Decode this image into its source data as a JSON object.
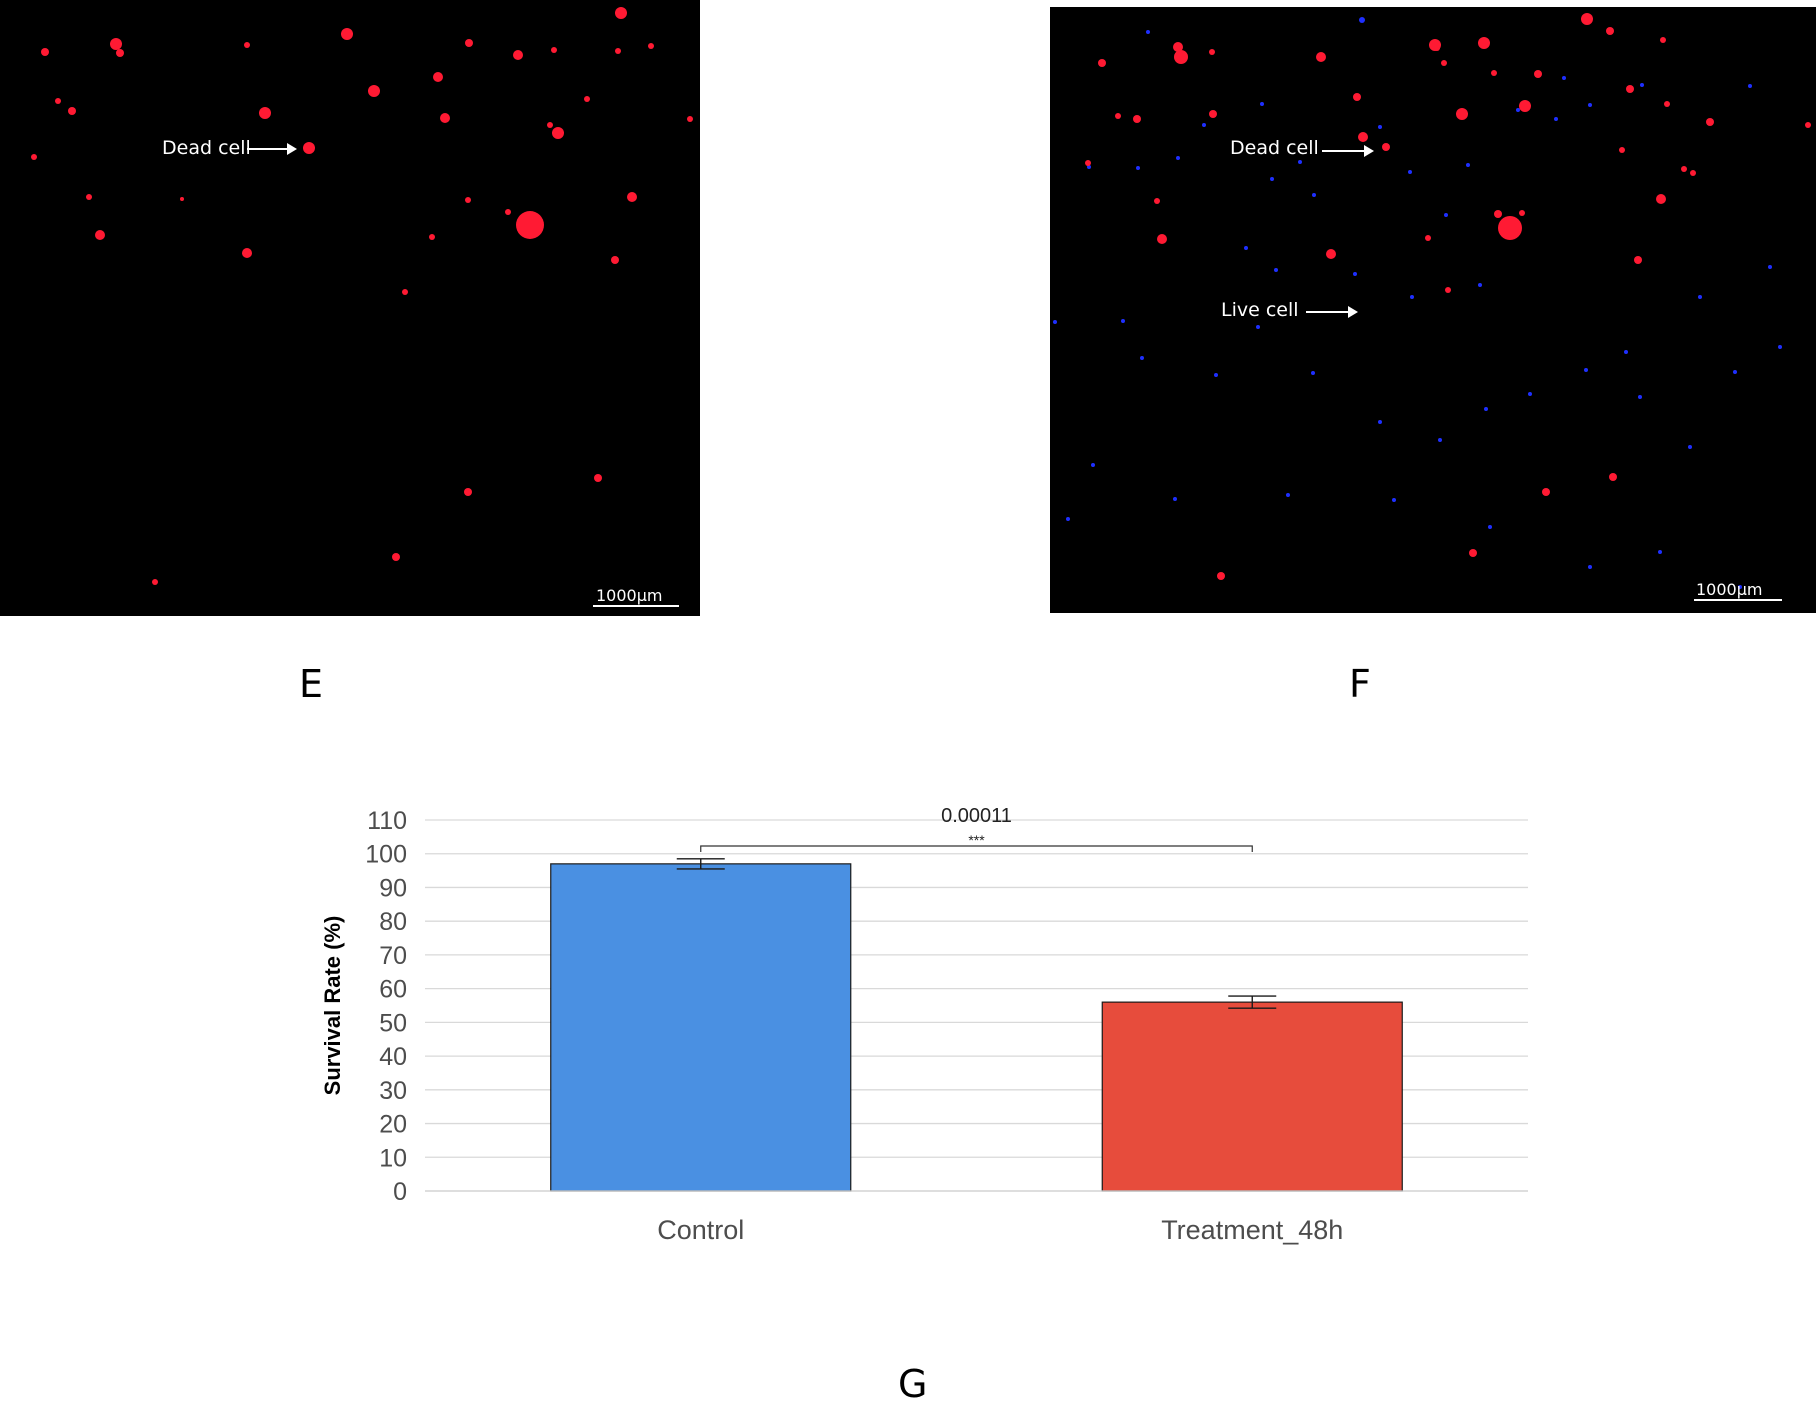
{
  "panels": {
    "e": {
      "letter": "E",
      "annotations": [
        {
          "text": "Dead cell"
        }
      ],
      "scale_bar": "1000µm"
    },
    "f": {
      "letter": "F",
      "annotations": [
        {
          "text": "Dead cell"
        },
        {
          "text": "Live cell"
        }
      ],
      "scale_bar": "1000µm"
    },
    "g": {
      "letter": "G"
    }
  },
  "colors": {
    "dead_cell": "#ff1a33",
    "live_cell": "#1e2fff",
    "control_bar": "#4a90e2",
    "treatment_bar": "#e74c3c"
  },
  "chart_data": {
    "type": "bar",
    "categories": [
      "Control",
      "Treatment_48h"
    ],
    "values": [
      97,
      56
    ],
    "error": [
      1.5,
      1.8
    ],
    "colors": [
      "#4a90e2",
      "#e74c3c"
    ],
    "title": "",
    "xlabel": "",
    "ylabel": "Survival Rate (%)",
    "ylim": [
      0,
      110
    ],
    "yticks": [
      0,
      10,
      20,
      30,
      40,
      50,
      60,
      70,
      80,
      90,
      100,
      110
    ],
    "grid": true,
    "significance": {
      "p_value": "0.00011",
      "stars": "***"
    }
  }
}
